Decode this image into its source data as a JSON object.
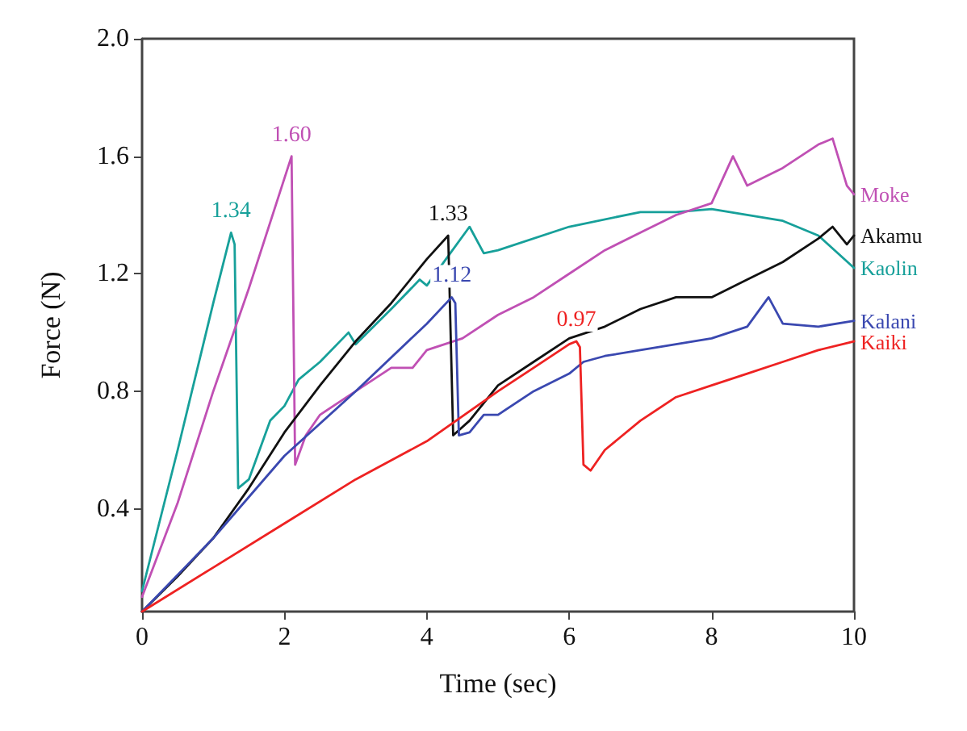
{
  "chart_data": {
    "type": "line",
    "xlabel": "Time (sec)",
    "ylabel": "Force (N)",
    "xlim": [
      0,
      10
    ],
    "xticks": [
      0,
      2,
      4,
      6,
      8,
      10
    ],
    "ylim": [
      0.05,
      2.0
    ],
    "yticks": [
      0.4,
      0.8,
      1.2,
      1.6,
      {
        "value": 2,
        "label": "2.0"
      }
    ],
    "grid": false,
    "legend": false,
    "marker": "none",
    "line_style": "solid",
    "series": [
      {
        "name": "Kaolin",
        "color": "#17a09a",
        "x": [
          0,
          0.5,
          1,
          1.25,
          1.3,
          1.35,
          1.5,
          1.8,
          2.0,
          2.2,
          2.5,
          2.9,
          3.0,
          3.5,
          3.9,
          4.0,
          4.3,
          4.6,
          4.8,
          5.0,
          6,
          7,
          7.5,
          8,
          8.5,
          9,
          9.5,
          10
        ],
        "values": [
          0.12,
          0.6,
          1.1,
          1.34,
          1.3,
          0.47,
          0.5,
          0.7,
          0.75,
          0.84,
          0.9,
          1.0,
          0.96,
          1.08,
          1.18,
          1.16,
          1.26,
          1.36,
          1.27,
          1.28,
          1.36,
          1.41,
          1.41,
          1.42,
          1.4,
          1.38,
          1.33,
          1.22
        ]
      },
      {
        "name": "Moke",
        "color": "#c050b4",
        "x": [
          0,
          0.5,
          1,
          1.5,
          2.1,
          2.15,
          2.3,
          2.5,
          3,
          3.5,
          3.8,
          4,
          4.5,
          5,
          5.5,
          6,
          6.5,
          7,
          7.5,
          8,
          8.3,
          8.5,
          9,
          9.5,
          9.7,
          9.9,
          10
        ],
        "values": [
          0.1,
          0.42,
          0.8,
          1.15,
          1.6,
          0.55,
          0.65,
          0.72,
          0.8,
          0.88,
          0.88,
          0.94,
          0.98,
          1.06,
          1.12,
          1.2,
          1.28,
          1.34,
          1.4,
          1.44,
          1.6,
          1.5,
          1.56,
          1.64,
          1.66,
          1.5,
          1.47
        ]
      },
      {
        "name": "Akamu",
        "color": "#111111",
        "x": [
          0,
          0.5,
          1,
          1.5,
          2,
          2.5,
          3,
          3.5,
          4,
          4.3,
          4.37,
          4.6,
          5,
          5.5,
          6,
          6.5,
          7,
          7.5,
          8,
          8.5,
          9,
          9.5,
          9.7,
          9.9,
          10
        ],
        "values": [
          0.05,
          0.17,
          0.3,
          0.47,
          0.66,
          0.82,
          0.97,
          1.1,
          1.25,
          1.33,
          0.65,
          0.7,
          0.82,
          0.9,
          0.98,
          1.02,
          1.08,
          1.12,
          1.12,
          1.18,
          1.24,
          1.32,
          1.36,
          1.3,
          1.33
        ]
      },
      {
        "name": "Kalani",
        "color": "#3a48b0",
        "x": [
          0,
          1,
          2,
          3,
          4,
          4.35,
          4.4,
          4.45,
          4.6,
          4.8,
          5,
          5.5,
          6,
          6.2,
          6.5,
          7,
          7.5,
          8,
          8.5,
          8.8,
          9,
          9.5,
          10
        ],
        "values": [
          0.05,
          0.3,
          0.58,
          0.8,
          1.03,
          1.12,
          1.1,
          0.65,
          0.66,
          0.72,
          0.72,
          0.8,
          0.86,
          0.9,
          0.92,
          0.94,
          0.96,
          0.98,
          1.02,
          1.12,
          1.03,
          1.02,
          1.04
        ]
      },
      {
        "name": "Kaiki",
        "color": "#ee2222",
        "x": [
          0,
          1,
          2,
          3,
          4,
          5,
          5.5,
          6,
          6.1,
          6.15,
          6.2,
          6.3,
          6.5,
          7,
          7.5,
          8,
          8.5,
          9,
          9.5,
          10
        ],
        "values": [
          0.05,
          0.2,
          0.35,
          0.5,
          0.63,
          0.8,
          0.88,
          0.96,
          0.97,
          0.95,
          0.55,
          0.53,
          0.6,
          0.7,
          0.78,
          0.82,
          0.86,
          0.9,
          0.94,
          0.97
        ]
      }
    ],
    "annotations": [
      {
        "text": "1.34",
        "x": 1.25,
        "y": 1.34
      },
      {
        "text": "1.60",
        "x": 2.1,
        "y": 1.6
      },
      {
        "text": "1.33",
        "x": 4.3,
        "y": 1.33
      },
      {
        "text": "1.12",
        "x": 4.35,
        "y": 1.12
      },
      {
        "text": "0.97",
        "x": 6.1,
        "y": 0.97
      }
    ]
  }
}
